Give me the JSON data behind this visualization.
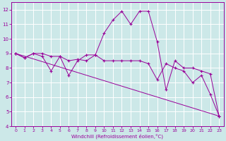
{
  "xlabel": "Windchill (Refroidissement éolien,°C)",
  "line_color": "#990099",
  "bg_color": "#cce8e8",
  "grid_color": "#ffffff",
  "xlim": [
    -0.5,
    23.5
  ],
  "ylim": [
    4,
    12.5
  ],
  "xticks": [
    0,
    1,
    2,
    3,
    4,
    5,
    6,
    7,
    8,
    9,
    10,
    11,
    12,
    13,
    14,
    15,
    16,
    17,
    18,
    19,
    20,
    21,
    22,
    23
  ],
  "yticks": [
    4,
    5,
    6,
    7,
    8,
    9,
    10,
    11,
    12
  ],
  "line1_x": [
    0,
    1,
    2,
    3,
    4,
    5,
    6,
    7,
    8,
    9,
    10,
    11,
    12,
    13,
    14,
    15,
    16,
    17,
    18,
    19,
    20,
    21,
    22,
    23
  ],
  "line1_y": [
    9.0,
    8.7,
    9.0,
    9.0,
    8.8,
    8.8,
    8.5,
    8.6,
    8.5,
    8.9,
    8.5,
    8.5,
    8.5,
    8.5,
    8.5,
    8.3,
    7.2,
    8.3,
    8.0,
    7.8,
    7.0,
    7.5,
    6.2,
    4.7
  ],
  "line2_x": [
    0,
    1,
    2,
    3,
    4,
    5,
    6,
    7,
    8,
    9,
    10,
    11,
    12,
    13,
    14,
    15,
    16,
    17,
    18,
    19,
    20,
    21,
    22,
    23
  ],
  "line2_y": [
    9.0,
    8.7,
    9.0,
    8.8,
    7.8,
    8.8,
    7.5,
    8.5,
    8.9,
    8.9,
    10.4,
    11.3,
    11.9,
    11.0,
    11.9,
    11.9,
    9.8,
    6.5,
    8.5,
    8.0,
    8.0,
    7.8,
    7.6,
    4.7
  ],
  "line3_x": [
    0,
    23
  ],
  "line3_y": [
    9.0,
    4.7
  ]
}
